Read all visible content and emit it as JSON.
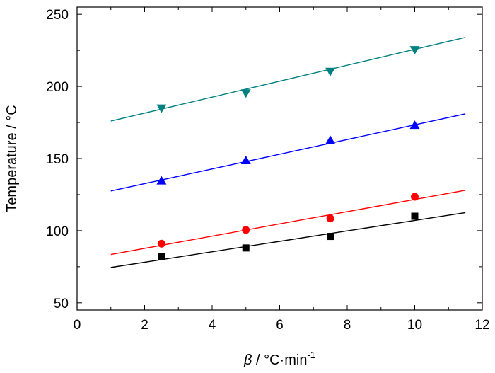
{
  "chart_data": {
    "type": "scatter",
    "title": "",
    "xlabel_symbol": "β",
    "xlabel_unit": " / °C·min",
    "xlabel_exponent": "-1",
    "ylabel": "Temperature / °C",
    "xlim": [
      0,
      12
    ],
    "ylim": [
      45,
      255
    ],
    "xticks": [
      0,
      2,
      4,
      6,
      8,
      10,
      12
    ],
    "yticks": [
      50,
      100,
      150,
      200,
      250
    ],
    "grid": false,
    "legend": "none",
    "series": [
      {
        "color": "#000000",
        "marker": "square",
        "x": [
          2.5,
          5,
          7.5,
          10
        ],
        "y": [
          82,
          88,
          96,
          110
        ],
        "fit_x": [
          1,
          11.5
        ],
        "fit_y": [
          74.5,
          112.5
        ]
      },
      {
        "color": "#ff0000",
        "marker": "circle",
        "x": [
          2.5,
          5,
          7.5,
          10
        ],
        "y": [
          91,
          100.5,
          108.5,
          123.5
        ],
        "fit_x": [
          1,
          11.5
        ],
        "fit_y": [
          83.5,
          128
        ]
      },
      {
        "color": "#0000ff",
        "marker": "triangle-up",
        "x": [
          2.5,
          5,
          7.5,
          10
        ],
        "y": [
          134.5,
          148.5,
          162.5,
          173
        ],
        "fit_x": [
          1,
          11.5
        ],
        "fit_y": [
          127.5,
          181
        ]
      },
      {
        "color": "#008080",
        "marker": "triangle-down",
        "x": [
          2.5,
          5,
          7.5,
          10
        ],
        "y": [
          185,
          195.5,
          210.5,
          225.5
        ],
        "fit_x": [
          1,
          11.5
        ],
        "fit_y": [
          176,
          234
        ]
      }
    ]
  }
}
